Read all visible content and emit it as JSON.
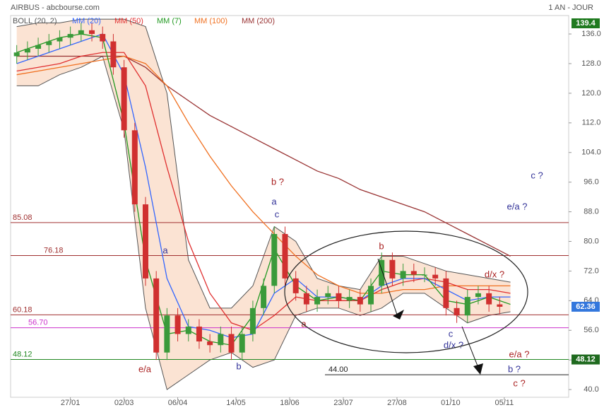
{
  "header": {
    "title": "AIRBUS - abcbourse.com",
    "period": "1 AN - JOUR"
  },
  "chart_data": {
    "type": "candlestick",
    "legend": [
      {
        "name": "BOLL (20, 2)",
        "color": "#555555"
      },
      {
        "name": "MM (20)",
        "color": "#3366ff"
      },
      {
        "name": "MM (50)",
        "color": "#e03030"
      },
      {
        "name": "MM (7)",
        "color": "#229922"
      },
      {
        "name": "MM (100)",
        "color": "#f07020"
      },
      {
        "name": "MM (200)",
        "color": "#993333"
      }
    ],
    "xlim": [
      -39,
      325
    ],
    "xticks": [
      {
        "value": 0,
        "label": "27/01"
      },
      {
        "value": 35,
        "label": "02/03"
      },
      {
        "value": 70,
        "label": "06/04"
      },
      {
        "value": 108,
        "label": "14/05"
      },
      {
        "value": 143,
        "label": "18/06"
      },
      {
        "value": 178,
        "label": "23/07"
      },
      {
        "value": 213,
        "label": "27/08"
      },
      {
        "value": 248,
        "label": "01/10"
      },
      {
        "value": 283,
        "label": "05/11"
      }
    ],
    "ylim": [
      38.3,
      140.4
    ],
    "yticks": [
      {
        "value": 136,
        "label": "136.0"
      },
      {
        "value": 128,
        "label": "128.0"
      },
      {
        "value": 120,
        "label": "120.0"
      },
      {
        "value": 112,
        "label": "112.0"
      },
      {
        "value": 104,
        "label": "104.0"
      },
      {
        "value": 96,
        "label": "96.0"
      },
      {
        "value": 88,
        "label": "88.0"
      },
      {
        "value": 80,
        "label": "80.0"
      },
      {
        "value": 72,
        "label": "72.0"
      },
      {
        "value": 64,
        "label": "64.0"
      },
      {
        "value": 56,
        "label": "56.0"
      },
      {
        "value": 48,
        "label": "48.0"
      },
      {
        "value": 40,
        "label": "40.0"
      }
    ],
    "up_color": "#3a9a3a",
    "down_color": "#d03030",
    "candles": {
      "x": [
        -35,
        -28,
        -21,
        -14,
        -7,
        0,
        7,
        14,
        21,
        28,
        35,
        42,
        49,
        56,
        63,
        70,
        77,
        84,
        91,
        98,
        105,
        112,
        119,
        126,
        133,
        140,
        147,
        154,
        161,
        168,
        175,
        182,
        189,
        196,
        203,
        210,
        217,
        224,
        231,
        238,
        245,
        252,
        259,
        266,
        273,
        280
      ],
      "open": [
        130,
        131,
        132,
        133,
        134,
        135,
        136,
        137,
        136,
        134,
        127,
        110,
        90,
        70,
        50,
        60,
        55,
        57,
        53,
        52,
        55,
        50,
        55,
        62,
        68,
        82,
        70,
        66,
        63,
        65,
        66,
        64,
        65,
        63,
        68,
        75,
        70,
        72,
        71,
        71,
        70,
        62,
        60,
        65,
        66,
        63
      ],
      "high": [
        133,
        134,
        135,
        136,
        137,
        138,
        139,
        139,
        138,
        136,
        129,
        112,
        92,
        72,
        62,
        62,
        59,
        59,
        55,
        57,
        57,
        57,
        64,
        70,
        84,
        84,
        72,
        68,
        67,
        68,
        68,
        67,
        67,
        70,
        77,
        77,
        74,
        74,
        73,
        73,
        72,
        64,
        67,
        68,
        68,
        65
      ],
      "low": [
        128,
        129,
        130,
        131,
        132,
        133,
        134,
        134,
        132,
        125,
        108,
        88,
        68,
        48,
        48,
        53,
        53,
        51,
        50,
        50,
        48,
        48,
        53,
        60,
        66,
        68,
        64,
        61,
        61,
        63,
        62,
        62,
        61,
        61,
        66,
        68,
        68,
        69,
        69,
        68,
        60,
        58,
        58,
        63,
        61,
        60.36
      ],
      "close": [
        131,
        132,
        133,
        134,
        135,
        136,
        137,
        136,
        134,
        127,
        110,
        90,
        70,
        50,
        60,
        55,
        57,
        53,
        52,
        55,
        50,
        55,
        62,
        68,
        82,
        70,
        66,
        63,
        65,
        66,
        64,
        65,
        63,
        68,
        75,
        70,
        72,
        71,
        71,
        70,
        62,
        60,
        65,
        66,
        63,
        62.36
      ]
    },
    "bands": {
      "x": [
        -35,
        -21,
        -7,
        7,
        21,
        35,
        49,
        63,
        77,
        91,
        105,
        119,
        133,
        147,
        161,
        175,
        189,
        203,
        217,
        231,
        245,
        259,
        273,
        287
      ],
      "upper": [
        138,
        139,
        139,
        140,
        140,
        140,
        138,
        120,
        75,
        62,
        62,
        68,
        84,
        80,
        70,
        68,
        67,
        76,
        76,
        74,
        72,
        71,
        70,
        69
      ],
      "lower": [
        122,
        122,
        125,
        127,
        130,
        110,
        62,
        40,
        44,
        48,
        50,
        46,
        48,
        60,
        62,
        62,
        60,
        62,
        66,
        66,
        62,
        58,
        60,
        61
      ],
      "fill": "#fbe3d3"
    },
    "series": [
      {
        "name": "MM (200)",
        "color": "#993333",
        "x": [
          -35,
          -21,
          -7,
          7,
          21,
          35,
          49,
          63,
          77,
          91,
          105,
          119,
          133,
          147,
          161,
          175,
          189,
          203,
          217,
          231,
          245,
          259,
          273,
          287
        ],
        "values": [
          130,
          130,
          130,
          130,
          130,
          130,
          127,
          122,
          118,
          114,
          111,
          108,
          105,
          102,
          99,
          97,
          94,
          92,
          90,
          88,
          85,
          82,
          79,
          76
        ]
      },
      {
        "name": "MM (100)",
        "color": "#f07020",
        "x": [
          -35,
          -21,
          -7,
          7,
          21,
          35,
          49,
          63,
          77,
          91,
          105,
          119,
          133,
          147,
          161,
          175,
          189,
          203,
          217,
          231,
          245,
          259,
          273,
          287
        ],
        "values": [
          125,
          126,
          127,
          128,
          129,
          130,
          128,
          122,
          112,
          103,
          95,
          88,
          82,
          76,
          71,
          68,
          66,
          66,
          67,
          67,
          68,
          68,
          68,
          68
        ]
      },
      {
        "name": "MM (50)",
        "color": "#e03030",
        "x": [
          -35,
          -21,
          -7,
          7,
          21,
          35,
          49,
          63,
          77,
          91,
          105,
          119,
          133,
          147,
          161,
          175,
          189,
          203,
          217,
          231,
          245,
          259,
          273,
          287
        ],
        "values": [
          126,
          127,
          128,
          130,
          131,
          131,
          122,
          100,
          80,
          66,
          58,
          56,
          60,
          65,
          64,
          64,
          64,
          67,
          69,
          70,
          69,
          67,
          67,
          66
        ]
      },
      {
        "name": "MM (20)",
        "color": "#3366ff",
        "x": [
          -35,
          -21,
          -7,
          7,
          21,
          35,
          49,
          63,
          77,
          91,
          105,
          119,
          133,
          147,
          161,
          175,
          189,
          203,
          217,
          231,
          245,
          259,
          273,
          287
        ],
        "values": [
          128,
          130,
          132,
          134,
          136,
          125,
          100,
          70,
          57,
          56,
          54,
          55,
          66,
          70,
          65,
          65,
          64,
          68,
          70,
          70,
          67,
          64,
          65,
          65
        ]
      },
      {
        "name": "MM (7)",
        "color": "#229922",
        "x": [
          -35,
          -21,
          -7,
          7,
          21,
          35,
          49,
          63,
          77,
          91,
          105,
          119,
          133,
          147,
          161,
          175,
          189,
          203,
          217,
          231,
          245,
          259,
          273,
          287
        ],
        "values": [
          131,
          133,
          135,
          136,
          135,
          112,
          75,
          55,
          56,
          53,
          52,
          60,
          78,
          68,
          64,
          65,
          64,
          72,
          71,
          71,
          64,
          63,
          65,
          63
        ]
      }
    ],
    "levels": [
      {
        "value": 85.08,
        "color": "#a03030"
      },
      {
        "value": 76.18,
        "color": "#a03030"
      },
      {
        "value": 60.18,
        "color": "#a03030"
      },
      {
        "value": {
          "value": 56.7,
          "label": "56.70"
        },
        "color": "#cc33cc"
      },
      {
        "value": 48.12,
        "color": "#228822"
      },
      {
        "value": {
          "value": 44,
          "label": "44.00"
        },
        "color": "#222222"
      }
    ],
    "price_tags": [
      {
        "value": 139.4,
        "color": "#1f7a1f"
      },
      {
        "value": 62.36,
        "color": "#3377dd"
      },
      {
        "value": 48.12,
        "color": "#1f6a1f"
      }
    ],
    "annotations": [
      {
        "text": "b ?",
        "color": "#aa2222"
      },
      {
        "text": "a",
        "color": "#333399"
      },
      {
        "text": "c",
        "color": "#333399"
      },
      {
        "text": "a",
        "color": "#333399"
      },
      {
        "text": "e/a",
        "color": "#aa2222"
      },
      {
        "text": "b",
        "color": "#333399"
      },
      {
        "text": "a",
        "color": "#aa2222"
      },
      {
        "text": "b",
        "color": "#aa2222"
      },
      {
        "text": "c",
        "color": "#333399"
      },
      {
        "text": "d/x ?",
        "color": "#333399"
      },
      {
        "text": "d/x ?",
        "color": "#aa2222"
      },
      {
        "text": "c ?",
        "color": "#333399"
      },
      {
        "text": "e/a ?",
        "color": "#333399"
      },
      {
        "text": "e/a ?",
        "color": "#aa2222"
      },
      {
        "text": "b ?",
        "color": "#333399"
      },
      {
        "text": "c ?",
        "color": "#aa2222"
      }
    ]
  }
}
